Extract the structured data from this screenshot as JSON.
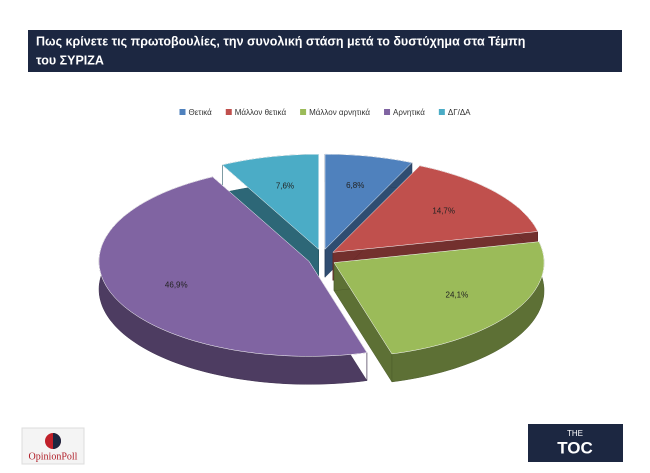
{
  "chart_data": {
    "type": "pie",
    "title": "Πως κρίνετε τις πρωτοβουλίες, την συνολική στάση μετά το δυστύχημα στα Τέμπη του ΣΥΡΙΖΑ",
    "categories": [
      "Θετικά",
      "Μάλλον θετικά",
      "Μάλλον αρνητικά",
      "Αρνητικά",
      "ΔΓ/ΔΑ"
    ],
    "values": [
      6.8,
      14.7,
      24.1,
      46.9,
      7.6
    ],
    "value_labels": [
      "6,8%",
      "14,7%",
      "24,1%",
      "46,9%",
      "7,6%"
    ],
    "colors": [
      "#4f81bd",
      "#c0504d",
      "#9bbb59",
      "#8064a2",
      "#4bacc6"
    ],
    "legend": "top"
  },
  "logos": {
    "pollster": "OpinionPoll",
    "media_top": "THE",
    "media": "TOC"
  }
}
